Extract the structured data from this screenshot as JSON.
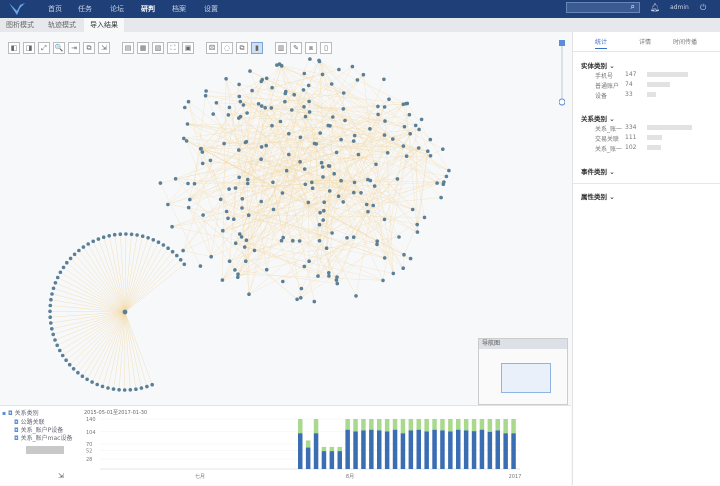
{
  "header": {
    "nav": [
      "首页",
      "任务",
      "论坛",
      "研判",
      "档案",
      "设置"
    ],
    "active": "研判",
    "user": "admin"
  },
  "tabs": [
    "图析模式",
    "轨迹模式",
    "导入结果"
  ],
  "toolbar": [
    "◧",
    "◨",
    "⤢",
    "🔍",
    "⇥",
    "⧉",
    "⇲",
    "▤",
    "▦",
    "▧",
    "⛶",
    "▣",
    "⚄",
    "◌",
    "⧉",
    "▮",
    "▥",
    "✎",
    "⧈",
    "▯"
  ],
  "minimap": {
    "title": "导航图"
  },
  "right": {
    "tabs": [
      "统计",
      "详情",
      "时间传播"
    ],
    "sections": [
      {
        "title": "实体类别",
        "rows": [
          {
            "name": "手机号",
            "count": "147",
            "bar": 0.9
          },
          {
            "name": "普通账户",
            "count": "74",
            "bar": 0.5
          },
          {
            "name": "设备",
            "count": "33",
            "bar": 0.2
          }
        ]
      },
      {
        "title": "关系类别",
        "rows": [
          {
            "name": "关系_账一",
            "count": "334",
            "bar": 1.0
          },
          {
            "name": "交易关联",
            "count": "111",
            "bar": 0.33
          },
          {
            "name": "关系_账一",
            "count": "102",
            "bar": 0.3
          }
        ]
      },
      {
        "title": "事件类别",
        "rows": []
      },
      {
        "title": "属性类别",
        "rows": []
      }
    ]
  },
  "legend": {
    "root": "关系类别",
    "items": [
      "公路关联",
      "关系_账户P设备",
      "关系_账户mac设备"
    ]
  },
  "colors": {
    "header": "#1f3f78",
    "node": "#5b7f96",
    "edge": "#f2d9a6",
    "bar_blue": "#3b6db3",
    "bar_green": "#a9d98d"
  },
  "chart_data": {
    "type": "bar",
    "title": "2015-05-01至2017-01-30",
    "yticks": [
      140,
      104,
      70,
      52,
      28
    ],
    "xticks": [
      "七月",
      "8月",
      "2017"
    ],
    "ylim": [
      0,
      140
    ],
    "series": [
      {
        "values": [
          100,
          60,
          100,
          50,
          50,
          50,
          110,
          105,
          108,
          110,
          108,
          105,
          110,
          100,
          108,
          110,
          105,
          110,
          108,
          105,
          110,
          108,
          106,
          110,
          104,
          108,
          100,
          100
        ]
      },
      {
        "values": [
          40,
          20,
          40,
          12,
          12,
          12,
          30,
          35,
          32,
          30,
          32,
          35,
          30,
          40,
          32,
          30,
          35,
          30,
          32,
          35,
          30,
          32,
          34,
          30,
          36,
          32,
          40,
          40
        ]
      }
    ]
  }
}
